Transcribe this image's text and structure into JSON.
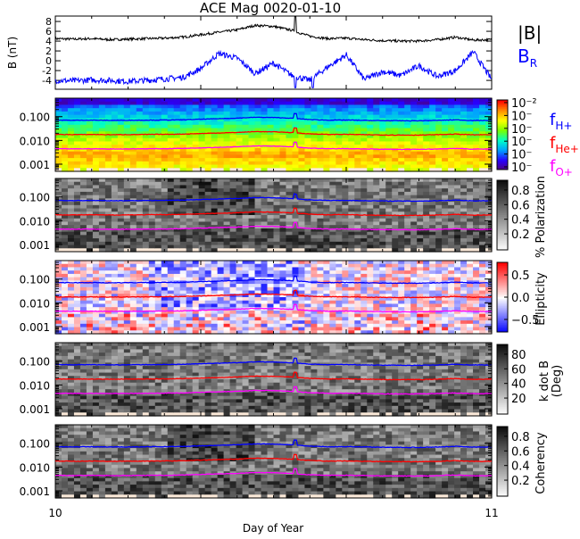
{
  "title": "ACE Mag 0020-01-10",
  "chart_data": [
    {
      "type": "line",
      "panel": "magnetic-field",
      "ylabel": "B (nT)",
      "yticks": [
        8,
        6,
        4,
        2,
        0,
        -2,
        -4
      ],
      "ylim": [
        -5.8,
        9.1
      ],
      "x": [
        10.0,
        10.042,
        10.083,
        10.125,
        10.167,
        10.208,
        10.25,
        10.292,
        10.333,
        10.375,
        10.417,
        10.458,
        10.5,
        10.542,
        10.583,
        10.625,
        10.667,
        10.708,
        10.75,
        10.792,
        10.833,
        10.875,
        10.917,
        10.958,
        11.0
      ],
      "series": [
        {
          "name": "|B|",
          "color": "#000000",
          "values": [
            4.5,
            4.4,
            4.5,
            4.3,
            4.4,
            4.5,
            4.6,
            4.8,
            5.3,
            5.8,
            6.3,
            7.2,
            7.0,
            6.2,
            5.0,
            4.5,
            4.6,
            4.3,
            4.1,
            4.0,
            4.0,
            4.3,
            4.8,
            4.2,
            4.3
          ]
        },
        {
          "name": "B_R",
          "color": "#0000ff",
          "values": [
            -4.0,
            -4.1,
            -3.9,
            -4.0,
            -4.2,
            -4.0,
            -3.7,
            -3.4,
            -1.6,
            1.5,
            0.5,
            -2.6,
            -0.5,
            -3.0,
            -4.0,
            -1.2,
            1.2,
            -3.8,
            -2.2,
            -3.0,
            -1.0,
            -3.2,
            -2.0,
            1.8,
            -3.8
          ]
        }
      ],
      "legend": [
        "|B|",
        "B_R"
      ]
    },
    {
      "type": "heatmap",
      "panel": "power-spectrum",
      "yscale": "log",
      "ylim": [
        0.0005,
        0.6
      ],
      "yticks": [
        "0.100",
        "0.010",
        "0.001"
      ],
      "colorbar_ticks": [
        "10⁻²",
        "10⁻",
        "10⁻",
        "10⁻",
        "10⁻",
        "10⁻"
      ],
      "colormap": "rainbow",
      "overlay_lines": [
        "f_H+",
        "f_He+",
        "f_O+"
      ]
    },
    {
      "type": "heatmap",
      "panel": "polarization",
      "yscale": "log",
      "ylim": [
        0.0005,
        0.6
      ],
      "yticks": [
        "0.100",
        "0.010",
        "0.001"
      ],
      "colorbar_label": "% Polarization",
      "colorbar_ticks": [
        "0.8",
        "0.6",
        "0.4",
        "0.2"
      ],
      "colormap": "gray"
    },
    {
      "type": "heatmap",
      "panel": "ellipticity",
      "yscale": "log",
      "ylim": [
        0.0005,
        0.6
      ],
      "yticks": [
        "0.100",
        "0.010",
        "0.001"
      ],
      "colorbar_label": "Ellipticity",
      "colorbar_ticks": [
        "0.5",
        "0.0",
        "−0.5"
      ],
      "colormap": "blue-white-red"
    },
    {
      "type": "heatmap",
      "panel": "k-dot-b",
      "yscale": "log",
      "ylim": [
        0.0005,
        0.6
      ],
      "yticks": [
        "0.100",
        "0.010",
        "0.001"
      ],
      "colorbar_label": "k dot B",
      "colorbar_sublabel": "(Deg)",
      "colorbar_ticks": [
        "80",
        "60",
        "40",
        "20"
      ],
      "colormap": "gray"
    },
    {
      "type": "heatmap",
      "panel": "coherency",
      "yscale": "log",
      "ylim": [
        0.0005,
        0.6
      ],
      "yticks": [
        "0.100",
        "0.010",
        "0.001"
      ],
      "colorbar_label": "Coherency",
      "colorbar_ticks": [
        "0.8",
        "0.6",
        "0.4",
        "0.2"
      ],
      "colormap": "gray"
    }
  ],
  "xaxis": {
    "label": "Day of Year",
    "ticks": [
      "10",
      "11"
    ],
    "xlim": [
      10,
      11
    ]
  },
  "legend": {
    "b_mag": "|B|",
    "b_r": "B",
    "b_r_sub": "R",
    "f_h": "f",
    "f_h_sub": "H+",
    "f_he": "f",
    "f_he_sub": "He+",
    "f_o": "f",
    "f_o_sub": "O+",
    "colors": {
      "b_mag": "#000000",
      "b_r": "#0000ff",
      "f_h": "#0000ff",
      "f_he": "#ff0000",
      "f_o": "#ff00ff"
    }
  }
}
